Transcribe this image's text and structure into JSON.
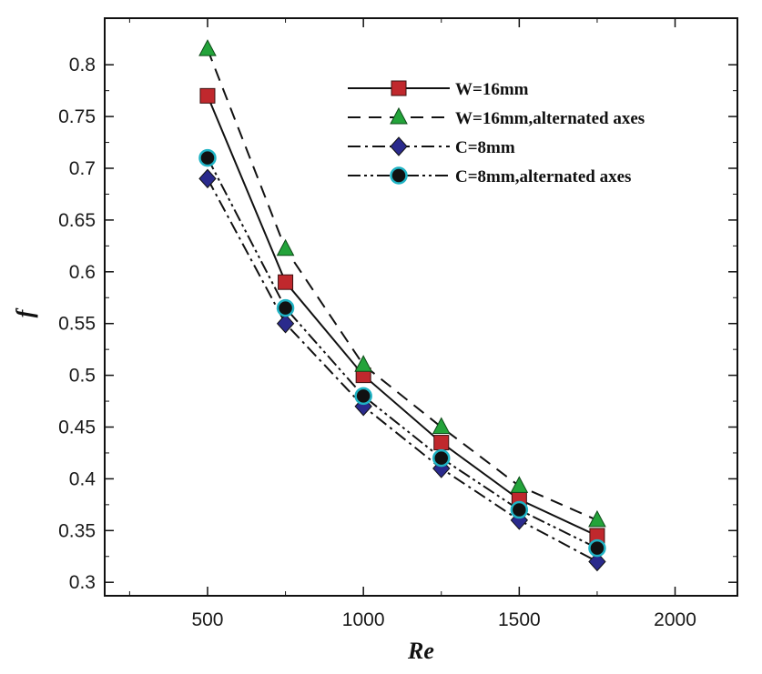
{
  "chart_data": {
    "type": "line",
    "title": "",
    "xlabel": "Re",
    "ylabel": "f",
    "xlim": [
      170,
      2200
    ],
    "ylim": [
      0.287,
      0.845
    ],
    "xticks": [
      500,
      1000,
      1500,
      2000
    ],
    "yticks": [
      0.3,
      0.35,
      0.4,
      0.45,
      0.5,
      0.55,
      0.6,
      0.65,
      0.7,
      0.75,
      0.8
    ],
    "grid": false,
    "legend_position": "top-right",
    "x": [
      500,
      750,
      1000,
      1250,
      1500,
      1750
    ],
    "series": [
      {
        "name": "W=16mm",
        "values": [
          0.77,
          0.59,
          0.5,
          0.435,
          0.38,
          0.345
        ],
        "line_style": "solid",
        "marker": "square",
        "marker_color": "#c0282d",
        "line_color": "#111111"
      },
      {
        "name": "W=16mm,alternated axes",
        "values": [
          0.815,
          0.622,
          0.51,
          0.45,
          0.393,
          0.36
        ],
        "line_style": "dashed",
        "marker": "triangle",
        "marker_color": "#23a33a",
        "line_color": "#111111"
      },
      {
        "name": "C=8mm",
        "values": [
          0.69,
          0.55,
          0.47,
          0.41,
          0.36,
          0.32
        ],
        "line_style": "dash-dot",
        "marker": "diamond",
        "marker_color": "#2a2a8c",
        "line_color": "#111111"
      },
      {
        "name": "C=8mm,alternated axes",
        "values": [
          0.71,
          0.565,
          0.48,
          0.42,
          0.37,
          0.333
        ],
        "line_style": "dash-dot-dot",
        "marker": "circle",
        "marker_color": "#111111",
        "marker_edge": "#1fb3c4",
        "line_color": "#111111"
      }
    ]
  }
}
